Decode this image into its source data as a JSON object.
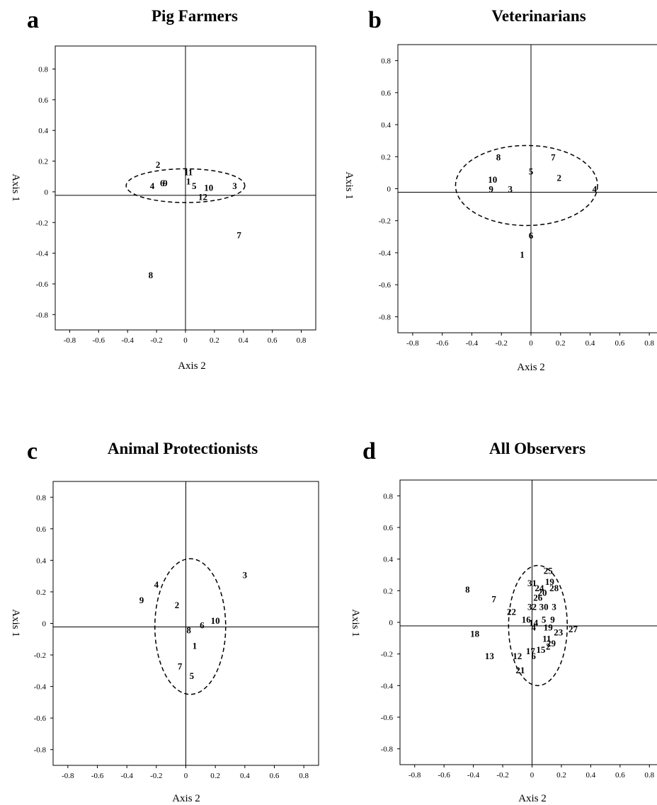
{
  "chart_data": [
    {
      "type": "scatter",
      "panel": "a",
      "title": "Pig Farmers",
      "xlabel": "Axis 2",
      "ylabel": "Axis 1",
      "xlim": [
        -0.9,
        0.9
      ],
      "ylim": [
        -0.9,
        0.95
      ],
      "xticks": [
        "-0.8",
        "-0.6",
        "-0.4",
        "-0.2",
        "0",
        "0.2",
        "0.4",
        "0.6",
        "0.8"
      ],
      "yticks": [
        "0.8",
        "0.6",
        "0.4",
        "0.2",
        "0",
        "-0.2",
        "-0.4",
        "-0.6",
        "-0.8"
      ],
      "ellipse": {
        "cx": 0.0,
        "cy": 0.04,
        "rx": 0.41,
        "ry": 0.11
      },
      "points": [
        {
          "label": "2",
          "x": -0.19,
          "y": 0.18
        },
        {
          "label": "11",
          "x": 0.02,
          "y": 0.13
        },
        {
          "label": "1",
          "x": 0.02,
          "y": 0.07
        },
        {
          "label": "4",
          "x": -0.23,
          "y": 0.04
        },
        {
          "label": "6",
          "x": -0.16,
          "y": 0.06
        },
        {
          "label": "9",
          "x": -0.14,
          "y": 0.06
        },
        {
          "label": "5",
          "x": 0.06,
          "y": 0.04
        },
        {
          "label": "10",
          "x": 0.16,
          "y": 0.03
        },
        {
          "label": "3",
          "x": 0.34,
          "y": 0.04
        },
        {
          "label": "12",
          "x": 0.12,
          "y": -0.03
        },
        {
          "label": "7",
          "x": 0.37,
          "y": -0.28
        },
        {
          "label": "8",
          "x": -0.24,
          "y": -0.54
        }
      ]
    },
    {
      "type": "scatter",
      "panel": "b",
      "title": "Veterinarians",
      "xlabel": "Axis 2",
      "ylabel": "Axis 1",
      "xlim": [
        -0.9,
        0.9
      ],
      "ylim": [
        -0.9,
        0.9
      ],
      "xticks": [
        "-0.8",
        "-0.6",
        "-0.4",
        "-0.2",
        "0",
        "0.2",
        "0.4",
        "0.6",
        "0.8"
      ],
      "yticks": [
        "0.8",
        "0.6",
        "0.4",
        "0.2",
        "0",
        "-0.2",
        "-0.4",
        "-0.6",
        "-0.8"
      ],
      "ellipse": {
        "cx": -0.03,
        "cy": 0.02,
        "rx": 0.48,
        "ry": 0.25
      },
      "points": [
        {
          "label": "8",
          "x": -0.22,
          "y": 0.2
        },
        {
          "label": "7",
          "x": 0.15,
          "y": 0.2
        },
        {
          "label": "5",
          "x": 0.0,
          "y": 0.11
        },
        {
          "label": "2",
          "x": 0.19,
          "y": 0.07
        },
        {
          "label": "10",
          "x": -0.26,
          "y": 0.06
        },
        {
          "label": "9",
          "x": -0.27,
          "y": 0.0
        },
        {
          "label": "3",
          "x": -0.14,
          "y": 0.0
        },
        {
          "label": "4",
          "x": 0.43,
          "y": 0.0
        },
        {
          "label": "6",
          "x": 0.0,
          "y": -0.29
        },
        {
          "label": "1",
          "x": -0.06,
          "y": -0.41
        }
      ]
    },
    {
      "type": "scatter",
      "panel": "c",
      "title": "Animal Protectionists",
      "xlabel": "Axis 2",
      "ylabel": "Axis 1",
      "xlim": [
        -0.9,
        0.9
      ],
      "ylim": [
        -0.9,
        0.9
      ],
      "xticks": [
        "-0.8",
        "-0.6",
        "-0.4",
        "-0.2",
        "0",
        "0.2",
        "0.4",
        "0.6",
        "0.8"
      ],
      "yticks": [
        "0.8",
        "0.6",
        "0.4",
        "0.2",
        "0",
        "-0.2",
        "-0.4",
        "-0.6",
        "-0.8"
      ],
      "ellipse": {
        "cx": 0.03,
        "cy": -0.02,
        "rx": 0.24,
        "ry": 0.43
      },
      "points": [
        {
          "label": "3",
          "x": 0.4,
          "y": 0.31
        },
        {
          "label": "4",
          "x": -0.2,
          "y": 0.25
        },
        {
          "label": "9",
          "x": -0.3,
          "y": 0.15
        },
        {
          "label": "2",
          "x": -0.06,
          "y": 0.12
        },
        {
          "label": "10",
          "x": 0.2,
          "y": 0.02
        },
        {
          "label": "6",
          "x": 0.11,
          "y": -0.01
        },
        {
          "label": "8",
          "x": 0.02,
          "y": -0.04
        },
        {
          "label": "1",
          "x": 0.06,
          "y": -0.14
        },
        {
          "label": "7",
          "x": -0.04,
          "y": -0.27
        },
        {
          "label": "5",
          "x": 0.04,
          "y": -0.33
        }
      ]
    },
    {
      "type": "scatter",
      "panel": "d",
      "title": "All Observers",
      "xlabel": "Axis 2",
      "ylabel": "Axis 1",
      "xlim": [
        -0.9,
        0.9
      ],
      "ylim": [
        -0.9,
        0.9
      ],
      "xticks": [
        "-0.8",
        "-0.6",
        "-0.4",
        "-0.2",
        "0",
        "0.2",
        "0.4",
        "0.6",
        "0.8"
      ],
      "yticks": [
        "0.8",
        "0.6",
        "0.4",
        "0.2",
        "0",
        "-0.2",
        "-0.4",
        "-0.6",
        "-0.8"
      ],
      "ellipse": {
        "cx": 0.04,
        "cy": -0.02,
        "rx": 0.2,
        "ry": 0.38
      },
      "points": [
        {
          "label": "25",
          "x": 0.11,
          "y": 0.33
        },
        {
          "label": "31",
          "x": 0.0,
          "y": 0.25
        },
        {
          "label": "19",
          "x": 0.12,
          "y": 0.26
        },
        {
          "label": "24",
          "x": 0.05,
          "y": 0.22
        },
        {
          "label": "28",
          "x": 0.15,
          "y": 0.22
        },
        {
          "label": "20",
          "x": 0.07,
          "y": 0.19
        },
        {
          "label": "26",
          "x": 0.04,
          "y": 0.16
        },
        {
          "label": "8",
          "x": -0.44,
          "y": 0.21
        },
        {
          "label": "7",
          "x": -0.26,
          "y": 0.15
        },
        {
          "label": "32",
          "x": 0.0,
          "y": 0.1
        },
        {
          "label": "30",
          "x": 0.08,
          "y": 0.1
        },
        {
          "label": "3",
          "x": 0.15,
          "y": 0.1
        },
        {
          "label": "22",
          "x": -0.14,
          "y": 0.07
        },
        {
          "label": "16",
          "x": -0.04,
          "y": 0.02
        },
        {
          "label": "5",
          "x": 0.08,
          "y": 0.02
        },
        {
          "label": "9",
          "x": 0.14,
          "y": 0.02
        },
        {
          "label": "14",
          "x": 0.01,
          "y": 0.0
        },
        {
          "label": "4",
          "x": 0.01,
          "y": -0.03
        },
        {
          "label": "19",
          "x": 0.11,
          "y": -0.03
        },
        {
          "label": "27",
          "x": 0.28,
          "y": -0.04
        },
        {
          "label": "23",
          "x": 0.18,
          "y": -0.06
        },
        {
          "label": "18",
          "x": -0.39,
          "y": -0.07
        },
        {
          "label": "11",
          "x": 0.1,
          "y": -0.1
        },
        {
          "label": "29",
          "x": 0.13,
          "y": -0.13
        },
        {
          "label": "15",
          "x": 0.06,
          "y": -0.17
        },
        {
          "label": "2",
          "x": 0.11,
          "y": -0.15
        },
        {
          "label": "17",
          "x": -0.01,
          "y": -0.18
        },
        {
          "label": "13",
          "x": -0.29,
          "y": -0.21
        },
        {
          "label": "12",
          "x": -0.1,
          "y": -0.21
        },
        {
          "label": "6",
          "x": 0.01,
          "y": -0.21
        },
        {
          "label": "21",
          "x": -0.08,
          "y": -0.3
        }
      ]
    }
  ]
}
